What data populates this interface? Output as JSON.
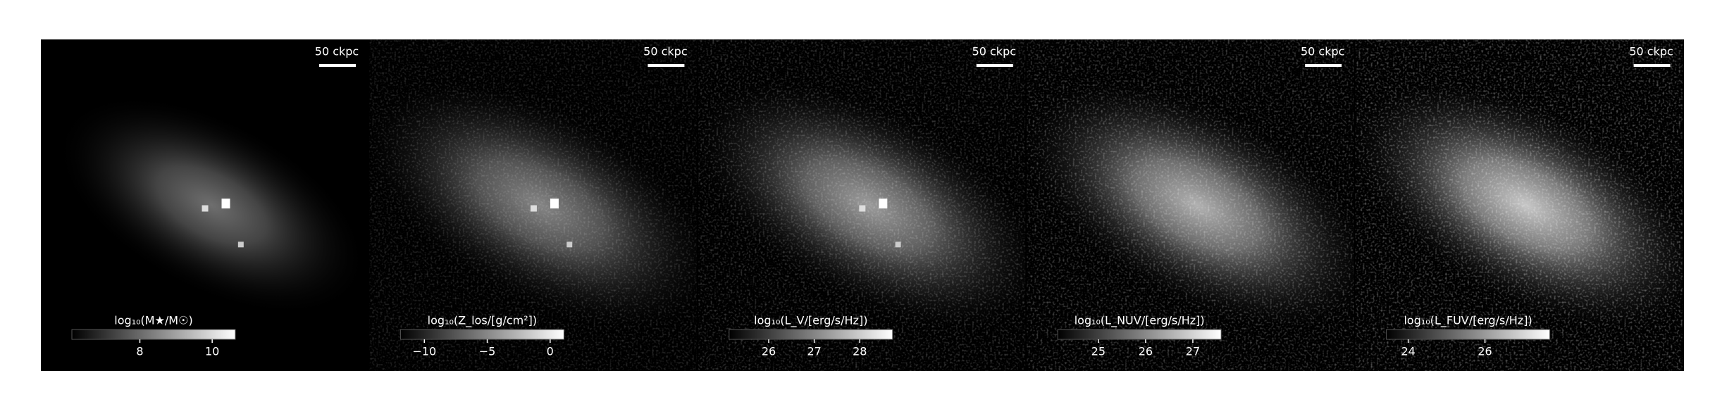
{
  "panels": [
    {
      "scale_bar": "50 ckpc",
      "colorbar": {
        "label": "log₁₀(M★/M☉)",
        "lim": [
          6.12,
          10.64
        ],
        "ticks": [
          8,
          10
        ]
      }
    },
    {
      "scale_bar": "50 ckpc",
      "colorbar": {
        "label": "log₁₀(Z_los/[g/cm²])",
        "lim": [
          -11.9,
          1.1
        ],
        "ticks": [
          {
            "value": -10,
            "label": "−10"
          },
          {
            "value": -5,
            "label": "−5"
          },
          0
        ]
      }
    },
    {
      "scale_bar": "50 ckpc",
      "colorbar": {
        "label": "log₁₀(L_V/[erg/s/Hz])",
        "lim": [
          25.13,
          28.72
        ],
        "ticks": [
          26,
          27,
          28
        ]
      }
    },
    {
      "scale_bar": "50 ckpc",
      "colorbar": {
        "label": "log₁₀(L_NUV/[erg/s/Hz])",
        "lim": [
          24.14,
          27.6
        ],
        "ticks": [
          25,
          26,
          27
        ]
      }
    },
    {
      "scale_bar": "50 ckpc",
      "colorbar": {
        "label": "log₁₀(L_FUV/[erg/s/Hz])",
        "lim": [
          23.43,
          27.69
        ],
        "ticks": [
          24,
          26
        ]
      }
    }
  ]
}
